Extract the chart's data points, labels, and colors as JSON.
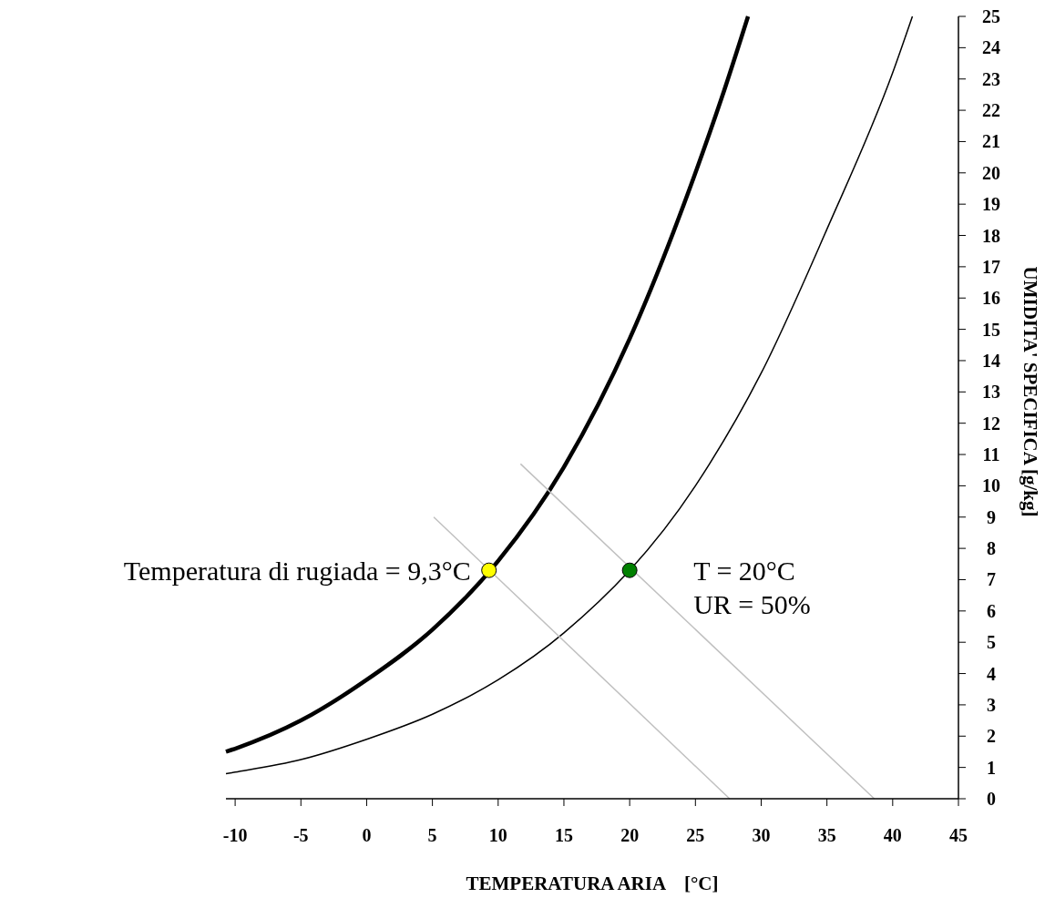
{
  "chart_data": {
    "type": "line",
    "xlabel": "TEMPERATURA ARIA    [°C]",
    "ylabel": "UMIDITA' SPECIFICA [g/kg]",
    "xlim": [
      -10.7,
      45
    ],
    "xticks": [
      -10,
      -5,
      0,
      5,
      10,
      15,
      20,
      25,
      30,
      35,
      40,
      45
    ],
    "ylim": [
      0,
      25
    ],
    "yticks": [
      0,
      1,
      2,
      3,
      4,
      5,
      6,
      7,
      8,
      9,
      10,
      11,
      12,
      13,
      14,
      15,
      16,
      17,
      18,
      19,
      20,
      21,
      22,
      23,
      24,
      25
    ],
    "series": [
      {
        "color": "#000000",
        "x": [
          -10.7,
          -10,
          -5,
          0,
          5,
          10,
          15,
          20,
          25,
          27,
          29
        ],
        "values": [
          1.5,
          1.6,
          2.5,
          3.8,
          5.4,
          7.6,
          10.6,
          14.7,
          20.0,
          22.4,
          25
        ]
      },
      {
        "color": "#000000",
        "x": [
          -10.7,
          -10,
          -5,
          0,
          5,
          10,
          15,
          25,
          30,
          35,
          40,
          41.5
        ],
        "values": [
          0.8,
          0.85,
          1.25,
          1.9,
          2.7,
          3.8,
          5.3,
          10.0,
          13.6,
          18.2,
          23.2,
          25
        ]
      },
      {
        "color": "#c0c0c0",
        "x": [
          5.1,
          27.6
        ],
        "values": [
          9.0,
          0
        ]
      },
      {
        "color": "#c0c0c0",
        "x": [
          11.7,
          38.6
        ],
        "values": [
          10.7,
          0
        ]
      },
      {
        "type": "scatter",
        "color": "#ffff00",
        "x": [
          9.3
        ],
        "values": [
          7.3
        ],
        "marker": "circle"
      },
      {
        "type": "scatter",
        "color": "#008000",
        "x": [
          20
        ],
        "values": [
          7.3
        ],
        "marker": "circle"
      }
    ],
    "annotations": [
      "Temperatura di rugiada = 9,3°C",
      "T = 20°C",
      "UR = 50%"
    ]
  }
}
